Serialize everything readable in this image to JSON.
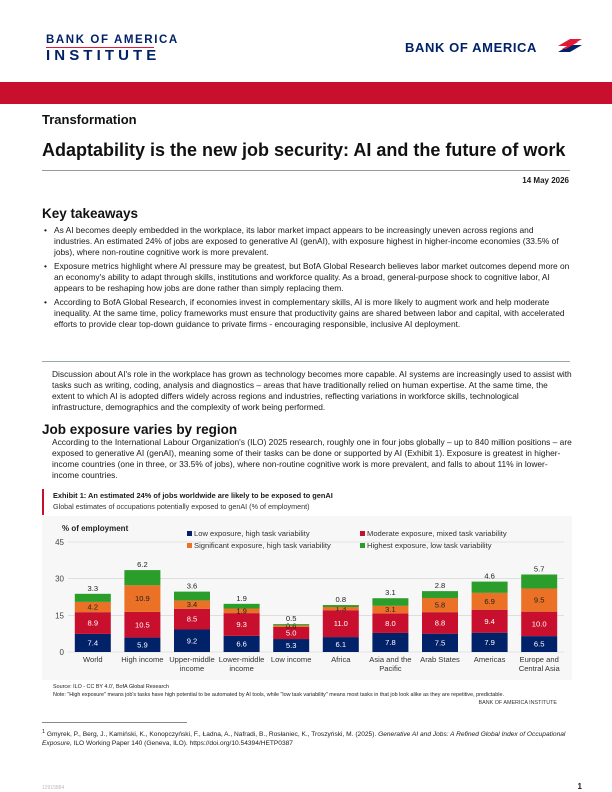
{
  "header": {
    "institute_line1": "BANK OF AMERICA",
    "institute_line2": "INSTITUTE",
    "brand": "BANK OF AMERICA"
  },
  "section_label": "Transformation",
  "title": "Adaptability is the new job security: AI and the future of work",
  "date": "14 May 2026",
  "key_takeaways": {
    "heading": "Key takeaways",
    "items": [
      "As AI becomes deeply embedded in the workplace, its labor market impact appears to be increasingly uneven across regions and industries. An estimated 24% of jobs are exposed to generative AI (genAI), with exposure highest in higher-income economies (33.5% of jobs), where non-routine cognitive work is more prevalent.",
      "Exposure metrics highlight where AI pressure may be greatest, but BofA Global Research believes labor market outcomes depend more on an economy's ability to adapt through skills, institutions and workforce quality. As a broad, general-purpose shock to cognitive labor, AI appears to be reshaping how jobs are done rather than simply replacing them.",
      "According to BofA Global Research, if economies invest in complementary skills, AI is more likely to augment work and help moderate inequality. At the same time, policy frameworks must ensure that productivity gains are shared between labor and capital, with accelerated efforts to provide clear top-down guidance to private firms - encouraging responsible, inclusive AI deployment."
    ]
  },
  "intro": "Discussion about AI's role in the workplace has grown as technology becomes more capable. AI systems are increasingly used to assist with tasks such as writing, coding, analysis and diagnostics – areas that have traditionally relied on human expertise. At the same time, the extent to which AI is adopted differs widely across regions and industries, reflecting variations in workforce skills, technological infrastructure, demographics and the complexity of work being performed.",
  "section2": {
    "heading": "Job exposure varies by region",
    "body": "According to the International Labour Organization's (ILO) 2025 research, roughly one in four jobs globally – up to 840 million positions – are exposed to generative AI (genAI), meaning some of their tasks can be done or supported by AI (Exhibit 1). Exposure is greatest in higher-income countries (one in three, or 33.5% of jobs), where non-routine cognitive work is more prevalent, and falls to about 11% in lower-income countries."
  },
  "exhibit": {
    "title": "Exhibit 1: An estimated 24% of jobs worldwide are likely to be exposed to genAI",
    "subtitle": "Global estimates of occupations potentially exposed to genAI (% of employment)",
    "source": "Source: ILO - CC BY 4.0', BofA Global Research",
    "note": "Note: \"High exposure\" means job's tasks have high potential to be automated by AI tools, while \"low task variability\" means most tasks in that job look alike as they are repetitive, predictable.",
    "source_right": "BANK OF AMERICA INSTITUTE"
  },
  "chart_data": {
    "type": "bar",
    "stacked": true,
    "ylabel": "% of employment",
    "ylim": [
      0,
      45
    ],
    "yticks": [
      0,
      15,
      30,
      45
    ],
    "categories": [
      [
        "World"
      ],
      [
        "High income"
      ],
      [
        "Upper-middle",
        "income"
      ],
      [
        "Lower-middle",
        "income"
      ],
      [
        "Low income"
      ],
      [
        "Africa"
      ],
      [
        "Asia and the",
        "Pacific"
      ],
      [
        "Arab States"
      ],
      [
        "Americas"
      ],
      [
        "Europe and",
        "Central Asia"
      ]
    ],
    "series": [
      {
        "name": "Low exposure, high task variability",
        "color": "#012169",
        "values": [
          7.4,
          5.9,
          9.2,
          6.6,
          5.3,
          6.1,
          7.8,
          7.5,
          7.9,
          6.5
        ]
      },
      {
        "name": "Moderate exposure, mixed task variability",
        "color": "#c8102e",
        "values": [
          8.9,
          10.5,
          8.5,
          9.3,
          5.0,
          11.0,
          8.0,
          8.8,
          9.4,
          10.0
        ]
      },
      {
        "name": "Significant exposure, high task variability",
        "color": "#ea7125",
        "values": [
          4.2,
          10.9,
          3.4,
          1.9,
          0.6,
          1.3,
          3.1,
          5.8,
          6.9,
          9.5
        ]
      },
      {
        "name": "Highest exposure, low task variability",
        "color": "#2a9d2a",
        "values": [
          3.3,
          6.2,
          3.6,
          1.9,
          0.5,
          0.8,
          3.1,
          2.8,
          4.6,
          5.7
        ]
      }
    ],
    "legend_position": "top"
  },
  "footnote": {
    "marker": "1",
    "text_plain": "Gmyrek, P., Berg, J., Kamiński, K., Konopczyński, F., Ładna, A., Nafradi, B., Rosłaniec, K., Troszyński, M. (2025). ",
    "text_italic": "Generative AI and Jobs: A Refined Global Index of Occupational Exposure",
    "text_end": ", ILO Working Paper 140 (Geneva, ILO). https://doi.org/10.54394/HETP0387"
  },
  "doc_code": "12915884",
  "page_number": "1"
}
